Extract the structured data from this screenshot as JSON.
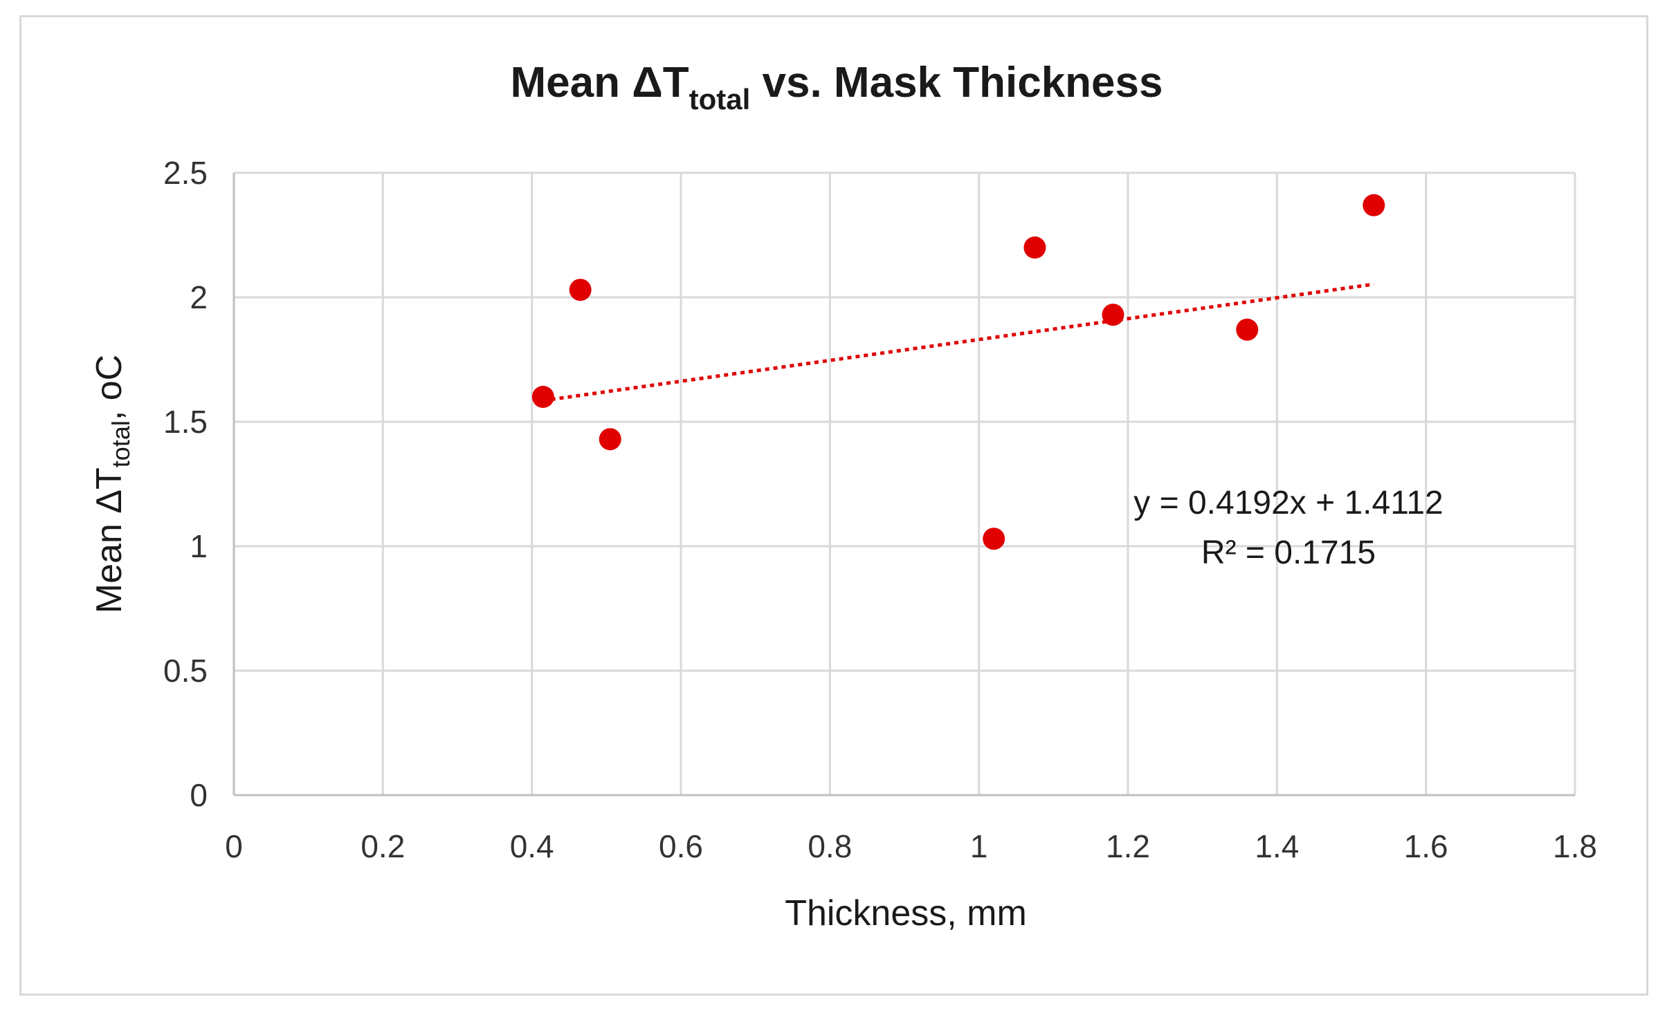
{
  "chart_data": {
    "type": "scatter",
    "title": {
      "pre": "Mean ΔT",
      "sub": "total",
      "post": " vs. Mask Thickness"
    },
    "xlabel": "Thickness, mm",
    "ylabel": {
      "pre": "Mean ΔT",
      "sub": "total",
      "post": ", oC"
    },
    "xlim": [
      0,
      1.8
    ],
    "ylim": [
      0,
      2.5
    ],
    "x_ticks": [
      "0",
      "0.2",
      "0.4",
      "0.6",
      "0.8",
      "1",
      "1.2",
      "1.4",
      "1.6",
      "1.8"
    ],
    "y_ticks": [
      "0",
      "0.5",
      "1",
      "1.5",
      "2",
      "2.5"
    ],
    "grid": true,
    "marker_color": "#e00000",
    "trendline_color": "#e00000",
    "points": [
      {
        "x": 0.415,
        "y": 1.6
      },
      {
        "x": 0.465,
        "y": 2.03
      },
      {
        "x": 0.505,
        "y": 1.43
      },
      {
        "x": 1.02,
        "y": 1.03
      },
      {
        "x": 1.075,
        "y": 2.2
      },
      {
        "x": 1.18,
        "y": 1.93
      },
      {
        "x": 1.36,
        "y": 1.87
      },
      {
        "x": 1.53,
        "y": 2.37
      }
    ],
    "trendline": {
      "slope": 0.4192,
      "intercept": 1.4112,
      "x_range": [
        0.415,
        1.53
      ],
      "style": "dotted"
    },
    "annotation": {
      "equation": "y = 0.4192x + 1.4112",
      "r2_label": "R² = 0.1715"
    }
  }
}
